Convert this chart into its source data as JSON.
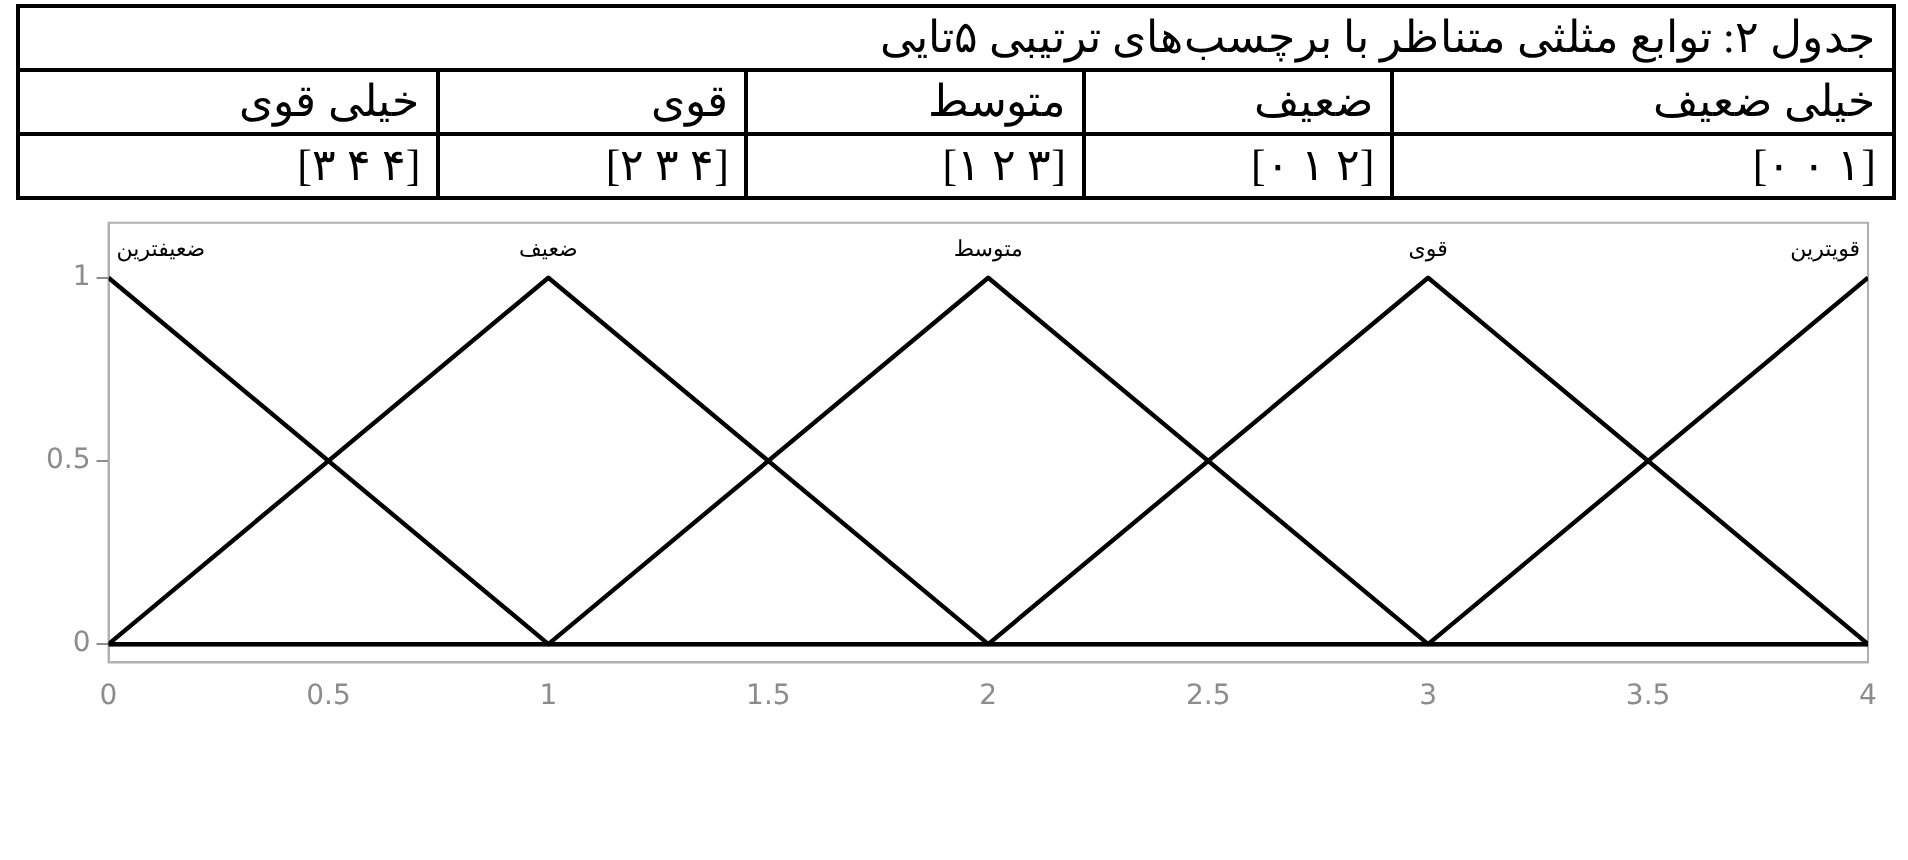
{
  "chart_data": {
    "type": "line",
    "title": "جدول ۲: توابع مثلثی متناظر با برچسب‌های ترتیبی ۵تایی",
    "annotations": [
      "خیلی ضعیف",
      "ضعیف",
      "متوسط",
      "قوی",
      "خیلی قوی",
      "[۰ ۰ ۱]",
      "[۰ ۱ ۲]",
      "[۱ ۲ ۳]",
      "[۲ ۳ ۴]",
      "[۳ ۴ ۴]"
    ],
    "series": [
      {
        "name": "ضعیفترین",
        "color": "#000000",
        "x": [
          0,
          1,
          4
        ],
        "values": [
          1,
          0,
          0
        ]
      },
      {
        "name": "ضعیف",
        "color": "#000000",
        "x": [
          0,
          1,
          2,
          4
        ],
        "values": [
          0,
          1,
          0,
          0
        ]
      },
      {
        "name": "متوسط",
        "color": "#000000",
        "x": [
          0,
          1,
          2,
          3,
          4
        ],
        "values": [
          0,
          0,
          1,
          0,
          0
        ]
      },
      {
        "name": "قوی",
        "color": "#000000",
        "x": [
          0,
          2,
          3,
          4
        ],
        "values": [
          0,
          0,
          1,
          0
        ]
      },
      {
        "name": "قویترین",
        "color": "#000000",
        "x": [
          0,
          3,
          4
        ],
        "values": [
          0,
          0,
          1
        ]
      }
    ],
    "xlim": [
      0,
      4
    ],
    "xticks": [
      0,
      0.5,
      1,
      1.5,
      2,
      2.5,
      3,
      3.5,
      4
    ],
    "ylim": [
      -0.05,
      1.15
    ],
    "yticks": [
      0,
      0.5,
      1
    ],
    "grid": false,
    "legend": false,
    "marker": "none",
    "line_style": "solid"
  }
}
